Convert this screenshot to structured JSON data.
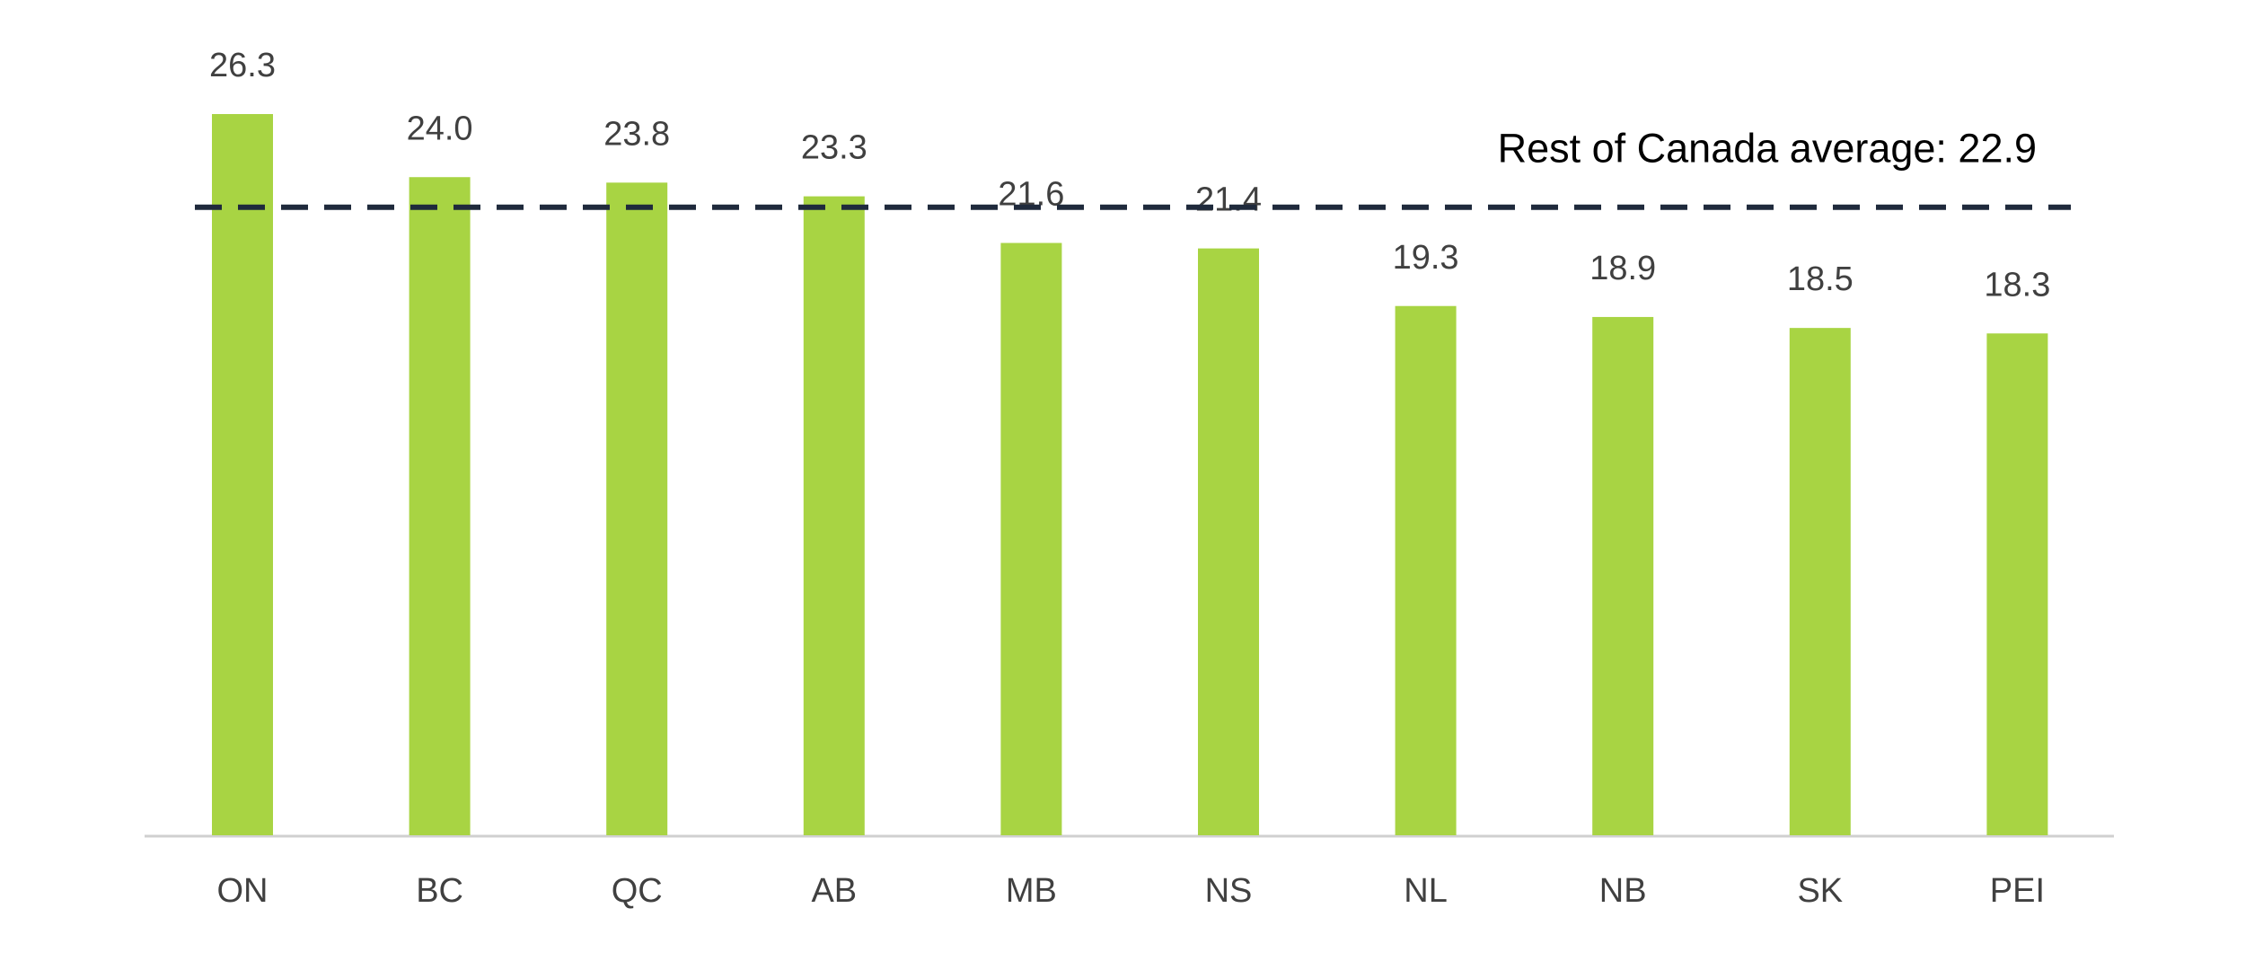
{
  "chart_data": {
    "type": "bar",
    "categories": [
      "ON",
      "BC",
      "QC",
      "AB",
      "MB",
      "NS",
      "NL",
      "NB",
      "SK",
      "PEI"
    ],
    "values": [
      26.3,
      24.0,
      23.8,
      23.3,
      21.6,
      21.4,
      19.3,
      18.9,
      18.5,
      18.3
    ],
    "value_labels": [
      "26.3",
      "24.0",
      "23.8",
      "23.3",
      "21.6",
      "21.4",
      "19.3",
      "18.9",
      "18.5",
      "18.3"
    ],
    "color": "#a8d443",
    "reference_line": {
      "value": 22.9,
      "label": "Rest of Canada average: 22.9",
      "color": "#1f2a3c"
    }
  }
}
